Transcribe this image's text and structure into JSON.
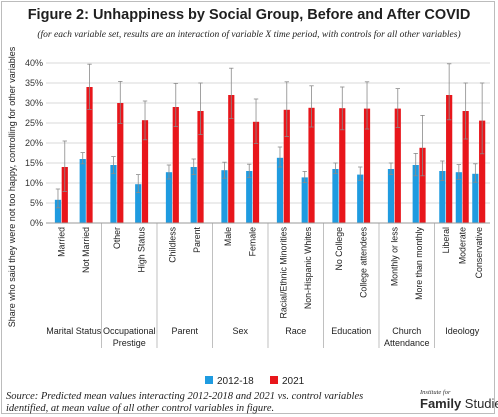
{
  "title": "Figure 2: Unhappiness by Social Group, Before and After COVID",
  "subtitle": "(for each variable set, results are an interaction of variable X time period, with controls for all other variables)",
  "source": "Source: Predicted mean values interacting 2012-2018 and 2021 vs. control variables identified, at mean value of all other control variables in figure.",
  "logo": {
    "line1": "Institute for",
    "brand_bold": "Family",
    "brand_rest": " Studies"
  },
  "colors": {
    "s2012": "#1f9be0",
    "s2021": "#e8161b",
    "errorbar": "#8a8a8a",
    "grid": "#d9d9d9",
    "group_divider": "#b0b0b0"
  },
  "chart_data": {
    "type": "bar",
    "ylabel": "Share who said they were not too happy, controlling for other variables",
    "ylim": [
      0,
      40
    ],
    "yticks": [
      "0%",
      "5%",
      "10%",
      "15%",
      "20%",
      "25%",
      "30%",
      "35%",
      "40%"
    ],
    "grid": true,
    "legend_position": "bottom",
    "categories": [
      "Married",
      "Not Married",
      "Other",
      "High Status",
      "Childless",
      "Parent",
      "Male",
      "Female",
      "Racial/Ethnic Minorities",
      "Non-Hispanic Whites",
      "No College",
      "College attendees",
      "Monthly or less",
      "More than monthly",
      "Liberal",
      "Moderate",
      "Conservative"
    ],
    "groups": [
      {
        "label": "Marital Status",
        "categories": [
          "Married",
          "Not Married"
        ]
      },
      {
        "label": "Occupational Prestige",
        "categories": [
          "Other",
          "High Status"
        ]
      },
      {
        "label": "Parent",
        "categories": [
          "Childless",
          "Parent"
        ]
      },
      {
        "label": "Sex",
        "categories": [
          "Male",
          "Female"
        ]
      },
      {
        "label": "Race",
        "categories": [
          "Racial/Ethnic Minorities",
          "Non-Hispanic Whites"
        ]
      },
      {
        "label": "Education",
        "categories": [
          "No College",
          "College attendees"
        ]
      },
      {
        "label": "Church Attendance",
        "categories": [
          "Monthly or less",
          "More than monthly"
        ]
      },
      {
        "label": "Ideology",
        "categories": [
          "Liberal",
          "Moderate",
          "Conservative"
        ]
      }
    ],
    "series": [
      {
        "name": "2012-18",
        "values": [
          5.8,
          16.0,
          14.5,
          9.7,
          12.7,
          14.0,
          13.2,
          13.0,
          16.3,
          11.4,
          13.5,
          12.1,
          13.5,
          14.5,
          13.0,
          12.7,
          12.3
        ],
        "err_low": [
          3.8,
          14.8,
          12.4,
          7.6,
          11.0,
          12.1,
          11.2,
          11.4,
          14.0,
          10.1,
          12.4,
          10.7,
          12.1,
          11.8,
          10.6,
          10.9,
          10.2
        ],
        "err_high": [
          8.5,
          17.6,
          16.6,
          12.1,
          14.5,
          16.0,
          15.2,
          14.7,
          19.0,
          12.9,
          15.0,
          14.0,
          15.0,
          17.4,
          15.5,
          14.6,
          14.8
        ]
      },
      {
        "name": "2021",
        "values": [
          14.0,
          34.0,
          30.0,
          25.7,
          29.0,
          28.0,
          32.0,
          25.3,
          28.3,
          28.8,
          28.7,
          28.6,
          28.6,
          18.8,
          32.0,
          28.0,
          25.6
        ],
        "err_low": [
          7.9,
          28.4,
          24.9,
          20.8,
          24.1,
          22.1,
          26.1,
          19.9,
          21.6,
          24.0,
          23.3,
          23.5,
          23.9,
          11.8,
          25.8,
          21.0,
          17.3
        ],
        "err_high": [
          20.5,
          39.7,
          35.4,
          30.5,
          34.9,
          35.0,
          38.7,
          31.0,
          35.3,
          34.3,
          34.0,
          35.3,
          33.6,
          26.9,
          39.8,
          35.0,
          35.0
        ]
      }
    ]
  }
}
